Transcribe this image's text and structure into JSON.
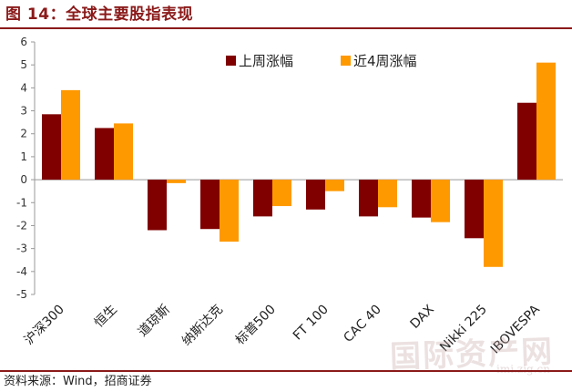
{
  "header": {
    "title": "图 14：全球主要股指表现"
  },
  "footer": {
    "source": "资料来源：Wind，招商证券"
  },
  "watermark": {
    "text": "国际资产网",
    "sub": "imi.zig.cn"
  },
  "colors": {
    "title": "#8b1a1a",
    "series_week": "#800000",
    "series_4week": "#ff9900"
  },
  "chart_data": {
    "type": "bar",
    "title": "",
    "xlabel": "",
    "ylabel": "",
    "ylim": [
      -5,
      6
    ],
    "yticks": [
      6,
      5,
      4,
      3,
      2,
      1,
      0,
      -1,
      -2,
      -3,
      -4,
      -5
    ],
    "legend_position": "top-right",
    "grid": false,
    "categories": [
      "沪深300",
      "恒生",
      "道琼斯",
      "纳斯达克",
      "标普500",
      "FT 100",
      "CAC 40",
      "DAX",
      "Nikki 225",
      "IBOVESPA"
    ],
    "series": [
      {
        "name": "上周涨幅",
        "values": [
          2.85,
          2.25,
          -2.2,
          -2.15,
          -1.6,
          -1.3,
          -1.6,
          -1.65,
          -2.55,
          3.35
        ]
      },
      {
        "name": "近4周涨幅",
        "values": [
          3.9,
          2.45,
          -0.15,
          -2.7,
          -1.15,
          -0.5,
          -1.2,
          -1.85,
          -3.8,
          5.1
        ]
      }
    ]
  }
}
